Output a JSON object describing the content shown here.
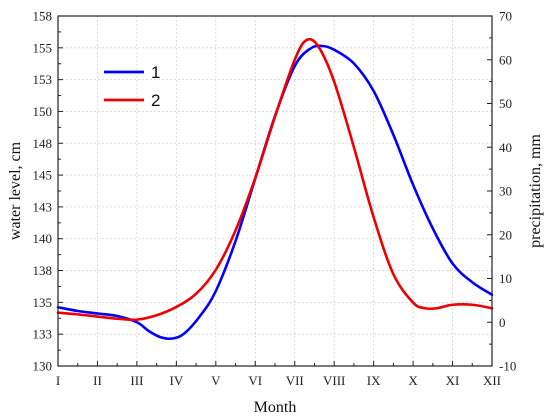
{
  "chart_data": {
    "type": "line",
    "xlabel": "Month",
    "ylabel_left": "water level, cm",
    "ylabel_right": "precipitation, mm",
    "x_categories": [
      "I",
      "II",
      "III",
      "IV",
      "V",
      "VI",
      "VII",
      "VIII",
      "IX",
      "X",
      "XI",
      "XII"
    ],
    "y_left_range": [
      130,
      158
    ],
    "y_left_ticks": [
      "130",
      "133",
      "135",
      "138",
      "140",
      "143",
      "145",
      "148",
      "150",
      "153",
      "155",
      "158"
    ],
    "y_right_range": [
      -10,
      70
    ],
    "y_right_ticks": [
      "-10",
      "0",
      "10",
      "20",
      "30",
      "40",
      "50",
      "60",
      "70"
    ],
    "grid": true,
    "legend_position": "top-left",
    "series": [
      {
        "name": "1",
        "axis": "left",
        "color": "#0000ff",
        "points": [
          [
            1.0,
            134.7
          ],
          [
            1.5,
            134.4
          ],
          [
            2.0,
            134.2
          ],
          [
            2.5,
            134.0
          ],
          [
            3.0,
            133.5
          ],
          [
            3.3,
            132.8
          ],
          [
            3.6,
            132.3
          ],
          [
            3.9,
            132.2
          ],
          [
            4.2,
            132.6
          ],
          [
            4.6,
            134.0
          ],
          [
            5.0,
            136.0
          ],
          [
            5.5,
            140.0
          ],
          [
            6.0,
            145.0
          ],
          [
            6.5,
            150.0
          ],
          [
            7.0,
            154.0
          ],
          [
            7.4,
            155.4
          ],
          [
            7.7,
            155.6
          ],
          [
            8.0,
            155.3
          ],
          [
            8.5,
            154.2
          ],
          [
            9.0,
            152.0
          ],
          [
            9.5,
            148.5
          ],
          [
            10.0,
            144.5
          ],
          [
            10.5,
            141.0
          ],
          [
            11.0,
            138.2
          ],
          [
            11.5,
            136.7
          ],
          [
            12.0,
            135.7
          ]
        ]
      },
      {
        "name": "2",
        "axis": "right",
        "color": "#ee0000",
        "points": [
          [
            1.0,
            2.2
          ],
          [
            1.5,
            1.8
          ],
          [
            2.0,
            1.3
          ],
          [
            2.5,
            0.8
          ],
          [
            3.0,
            0.6
          ],
          [
            3.5,
            1.6
          ],
          [
            4.0,
            3.5
          ],
          [
            4.5,
            6.5
          ],
          [
            5.0,
            12.0
          ],
          [
            5.5,
            21.0
          ],
          [
            6.0,
            33.0
          ],
          [
            6.5,
            47.0
          ],
          [
            7.0,
            60.0
          ],
          [
            7.3,
            64.5
          ],
          [
            7.6,
            63.0
          ],
          [
            8.0,
            55.0
          ],
          [
            8.5,
            40.0
          ],
          [
            9.0,
            24.0
          ],
          [
            9.5,
            11.0
          ],
          [
            10.0,
            4.5
          ],
          [
            10.3,
            3.2
          ],
          [
            10.6,
            3.2
          ],
          [
            11.0,
            4.0
          ],
          [
            11.5,
            4.0
          ],
          [
            12.0,
            3.2
          ]
        ]
      }
    ]
  }
}
